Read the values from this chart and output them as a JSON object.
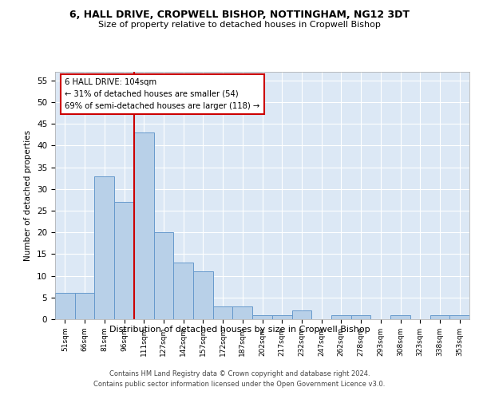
{
  "title1": "6, HALL DRIVE, CROPWELL BISHOP, NOTTINGHAM, NG12 3DT",
  "title2": "Size of property relative to detached houses in Cropwell Bishop",
  "xlabel": "Distribution of detached houses by size in Cropwell Bishop",
  "ylabel": "Number of detached properties",
  "categories": [
    "51sqm",
    "66sqm",
    "81sqm",
    "96sqm",
    "111sqm",
    "127sqm",
    "142sqm",
    "157sqm",
    "172sqm",
    "187sqm",
    "202sqm",
    "217sqm",
    "232sqm",
    "247sqm",
    "262sqm",
    "278sqm",
    "293sqm",
    "308sqm",
    "323sqm",
    "338sqm",
    "353sqm"
  ],
  "values": [
    6,
    6,
    33,
    27,
    43,
    20,
    13,
    11,
    3,
    3,
    1,
    1,
    2,
    0,
    1,
    1,
    0,
    1,
    0,
    1,
    1
  ],
  "bar_color": "#b8d0e8",
  "bar_edge_color": "#6699cc",
  "ref_line_color": "#cc0000",
  "annotation_box_edge": "#cc0000",
  "ylim": [
    0,
    57
  ],
  "yticks": [
    0,
    5,
    10,
    15,
    20,
    25,
    30,
    35,
    40,
    45,
    50,
    55
  ],
  "footer1": "Contains HM Land Registry data © Crown copyright and database right 2024.",
  "footer2": "Contains public sector information licensed under the Open Government Licence v3.0.",
  "bg_color": "#ffffff",
  "plot_bg_color": "#dce8f5",
  "grid_color": "#ffffff",
  "ref_line_label": "6 HALL DRIVE: 104sqm",
  "annotation_line1": "← 31% of detached houses are smaller (54)",
  "annotation_line2": "69% of semi-detached houses are larger (118) →"
}
